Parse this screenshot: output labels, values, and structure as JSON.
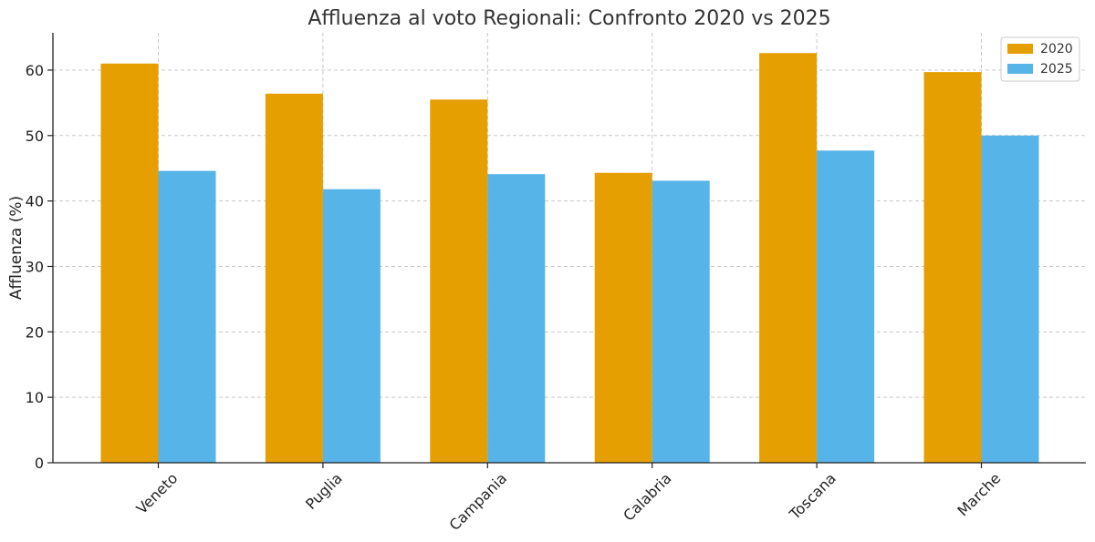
{
  "chart_data": {
    "type": "bar",
    "title": "Affluenza al voto Regionali: Confronto 2020 vs 2025",
    "xlabel": "",
    "ylabel": "Affluenza (%)",
    "categories": [
      "Veneto",
      "Puglia",
      "Campania",
      "Calabria",
      "Toscana",
      "Marche"
    ],
    "series": [
      {
        "name": "2020",
        "color": "#E69F00",
        "values": [
          61.0,
          56.4,
          55.5,
          44.3,
          62.6,
          59.7
        ]
      },
      {
        "name": "2025",
        "color": "#56B4E9",
        "values": [
          44.6,
          41.8,
          44.1,
          43.1,
          47.7,
          50.0
        ]
      }
    ],
    "ylim": [
      0,
      65.7
    ],
    "yticks": [
      0,
      10,
      20,
      30,
      40,
      50,
      60
    ],
    "grid": true,
    "legend_position": "top-right"
  }
}
